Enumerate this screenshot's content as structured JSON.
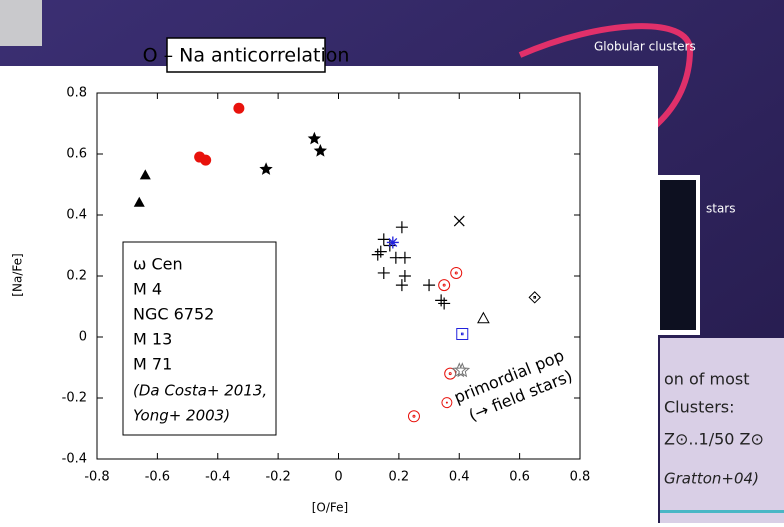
{
  "chart_data": {
    "type": "scatter",
    "title": "O – Na anticorrelation",
    "x_label": "[O/Fe]",
    "y_label": "[Na/Fe]",
    "xlim": [
      -0.8,
      0.8
    ],
    "xticks": [
      -0.8,
      -0.6,
      -0.4,
      -0.2,
      0,
      0.2,
      0.4,
      0.6,
      0.8
    ],
    "ylim": [
      -0.4,
      0.8
    ],
    "yticks": [
      -0.4,
      -0.2,
      0,
      0.2,
      0.4,
      0.6,
      0.8
    ],
    "series": [
      {
        "marker": "triangle-filled",
        "color": "#000000",
        "x": [
          -0.66,
          -0.64
        ],
        "values": [
          0.44,
          0.53
        ]
      },
      {
        "marker": "circle-filled",
        "color": "#e8120c",
        "x": [
          -0.46,
          -0.44,
          -0.33
        ],
        "values": [
          0.59,
          0.58,
          0.75
        ]
      },
      {
        "marker": "star-filled",
        "color": "#000000",
        "x": [
          -0.24,
          -0.08,
          -0.06
        ],
        "values": [
          0.55,
          0.65,
          0.61
        ]
      },
      {
        "marker": "plus",
        "color": "#000000",
        "x": [
          0.13,
          0.14,
          0.15,
          0.15,
          0.17,
          0.19,
          0.21,
          0.21,
          0.22,
          0.22,
          0.3,
          0.34,
          0.35
        ],
        "values": [
          0.27,
          0.28,
          0.32,
          0.21,
          0.3,
          0.26,
          0.36,
          0.17,
          0.2,
          0.26,
          0.17,
          0.12,
          0.11
        ]
      },
      {
        "marker": "asterisk",
        "color": "#2222dd",
        "x": [
          0.18
        ],
        "values": [
          0.31
        ]
      },
      {
        "marker": "cross",
        "color": "#000000",
        "x": [
          0.4
        ],
        "values": [
          0.38
        ]
      },
      {
        "marker": "circle-dot",
        "color": "#e8120c",
        "x": [
          0.39,
          0.35,
          0.37,
          0.25
        ],
        "values": [
          0.21,
          0.17,
          -0.12,
          -0.26
        ]
      },
      {
        "marker": "square-dot",
        "color": "#2222dd",
        "x": [
          0.41
        ],
        "values": [
          0.01
        ]
      },
      {
        "marker": "triangle-open",
        "color": "#000000",
        "x": [
          0.48
        ],
        "values": [
          0.06
        ]
      },
      {
        "marker": "diamond-dot",
        "color": "#000000",
        "x": [
          0.65
        ],
        "values": [
          0.13
        ]
      },
      {
        "marker": "star-open",
        "color": "#777777",
        "x": [
          0.4,
          0.41
        ],
        "values": [
          -0.11,
          -0.11
        ]
      }
    ],
    "legend_box": [
      "ω Cen",
      "M 4",
      "NGC 6752",
      "M 13",
      "M 71",
      "(Da Costa+ 2013,",
      "Yong+ 2003)"
    ],
    "annotation": [
      "primordial pop",
      "(→ field stars)"
    ]
  },
  "slide": {
    "labels": [
      "Globular clusters",
      "stars",
      "on of most",
      "Clusters:",
      "Z⊙..1/50 Z⊙",
      "Gratton+04)"
    ]
  }
}
